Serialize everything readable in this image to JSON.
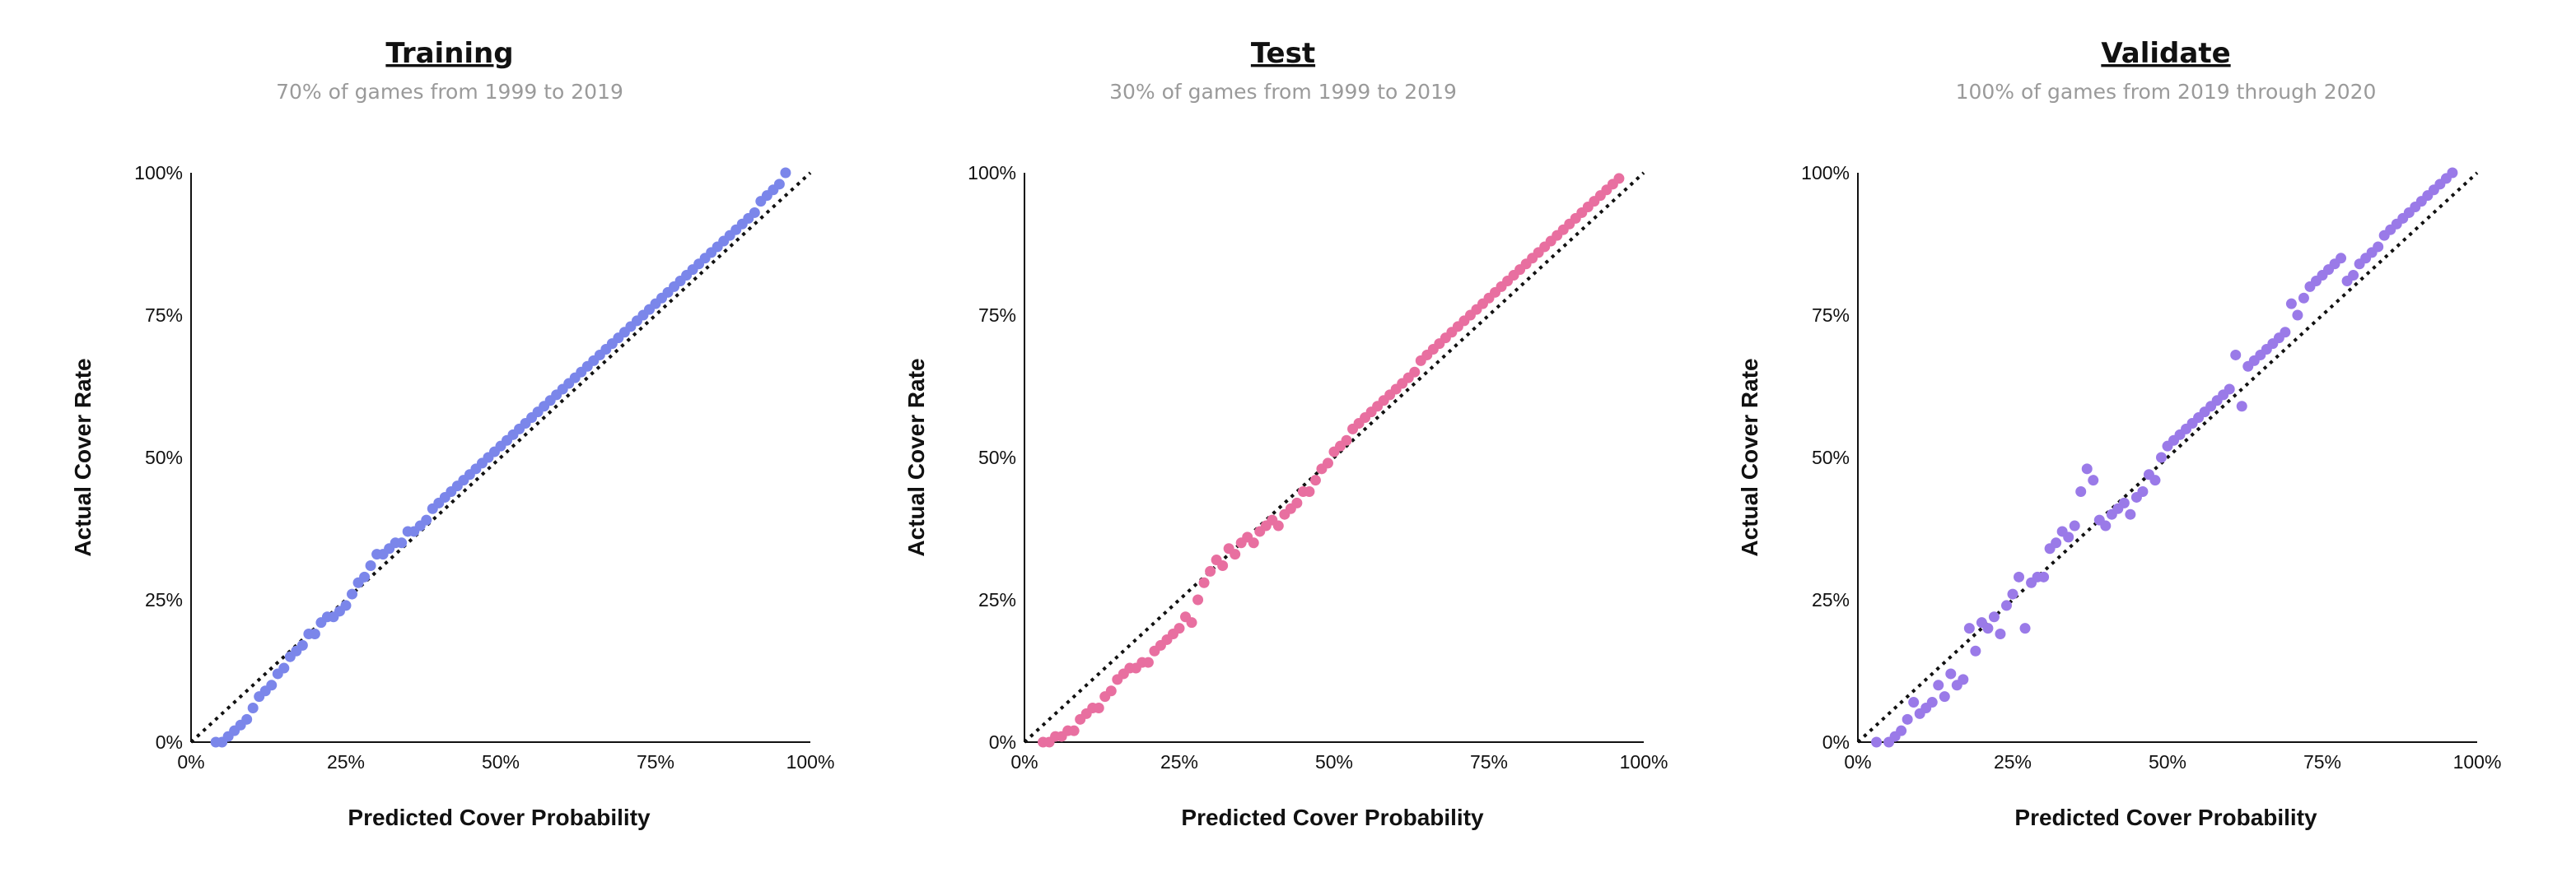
{
  "chart_data": [
    {
      "type": "scatter",
      "title": "Training",
      "subtitle": "70% of games from 1999 to 2019",
      "xlabel": "Predicted Cover Probability",
      "ylabel": "Actual Cover Rate",
      "xlim": [
        0,
        100
      ],
      "ylim": [
        0,
        100
      ],
      "xticks": [
        "0%",
        "25%",
        "50%",
        "75%",
        "100%"
      ],
      "yticks": [
        "0%",
        "25%",
        "50%",
        "75%",
        "100%"
      ],
      "grid": false,
      "reference_line": "y = x",
      "color": "#7b86ea",
      "series": [
        {
          "x": [
            4,
            5,
            6,
            7,
            8,
            9,
            10,
            11,
            12,
            13,
            14,
            15,
            16,
            17,
            18,
            19,
            20,
            21,
            22,
            23,
            24,
            25,
            26,
            27,
            28,
            29,
            30,
            31,
            32,
            33,
            34,
            35,
            36,
            37,
            38,
            39,
            40,
            41,
            42,
            43,
            44,
            45,
            46,
            47,
            48,
            49,
            50,
            51,
            52,
            53,
            54,
            55,
            56,
            57,
            58,
            59,
            60,
            61,
            62,
            63,
            64,
            65,
            66,
            67,
            68,
            69,
            70,
            71,
            72,
            73,
            74,
            75,
            76,
            77,
            78,
            79,
            80,
            81,
            82,
            83,
            84,
            85,
            86,
            87,
            88,
            89,
            90,
            91,
            92,
            93,
            94,
            95,
            96
          ],
          "y": [
            0,
            0,
            1,
            2,
            3,
            4,
            6,
            8,
            9,
            10,
            12,
            13,
            15,
            16,
            17,
            19,
            19,
            21,
            22,
            22,
            23,
            24,
            26,
            28,
            29,
            31,
            33,
            33,
            34,
            35,
            35,
            37,
            37,
            38,
            39,
            41,
            42,
            43,
            44,
            45,
            46,
            47,
            48,
            49,
            50,
            51,
            52,
            53,
            54,
            55,
            56,
            57,
            58,
            59,
            60,
            61,
            62,
            63,
            64,
            65,
            66,
            67,
            68,
            69,
            70,
            71,
            72,
            73,
            74,
            75,
            76,
            77,
            78,
            79,
            80,
            81,
            82,
            83,
            84,
            85,
            86,
            87,
            88,
            89,
            90,
            91,
            92,
            93,
            95,
            96,
            97,
            98,
            100
          ]
        }
      ]
    },
    {
      "type": "scatter",
      "title": "Test",
      "subtitle": "30% of games from 1999 to 2019",
      "xlabel": "Predicted Cover Probability",
      "ylabel": "Actual Cover Rate",
      "xlim": [
        0,
        100
      ],
      "ylim": [
        0,
        100
      ],
      "xticks": [
        "0%",
        "25%",
        "50%",
        "75%",
        "100%"
      ],
      "yticks": [
        "0%",
        "25%",
        "50%",
        "75%",
        "100%"
      ],
      "grid": false,
      "reference_line": "y = x",
      "color": "#e86fa0",
      "series": [
        {
          "x": [
            3,
            4,
            5,
            6,
            7,
            8,
            9,
            10,
            11,
            12,
            13,
            14,
            15,
            16,
            17,
            18,
            19,
            20,
            21,
            22,
            23,
            24,
            25,
            26,
            27,
            28,
            29,
            30,
            31,
            32,
            33,
            34,
            35,
            36,
            37,
            38,
            39,
            40,
            41,
            42,
            43,
            44,
            45,
            46,
            47,
            48,
            49,
            50,
            51,
            52,
            53,
            54,
            55,
            56,
            57,
            58,
            59,
            60,
            61,
            62,
            63,
            64,
            65,
            66,
            67,
            68,
            69,
            70,
            71,
            72,
            73,
            74,
            75,
            76,
            77,
            78,
            79,
            80,
            81,
            82,
            83,
            84,
            85,
            86,
            87,
            88,
            89,
            90,
            91,
            92,
            93,
            94,
            95,
            96
          ],
          "y": [
            0,
            0,
            1,
            1,
            2,
            2,
            4,
            5,
            6,
            6,
            8,
            9,
            11,
            12,
            13,
            13,
            14,
            14,
            16,
            17,
            18,
            19,
            20,
            22,
            21,
            25,
            28,
            30,
            32,
            31,
            34,
            33,
            35,
            36,
            35,
            37,
            38,
            39,
            38,
            40,
            41,
            42,
            44,
            44,
            46,
            48,
            49,
            51,
            52,
            53,
            55,
            56,
            57,
            58,
            59,
            60,
            61,
            62,
            63,
            64,
            65,
            67,
            68,
            69,
            70,
            71,
            72,
            73,
            74,
            75,
            76,
            77,
            78,
            79,
            80,
            81,
            82,
            83,
            84,
            85,
            86,
            87,
            88,
            89,
            90,
            91,
            92,
            93,
            94,
            95,
            96,
            97,
            98,
            99
          ]
        }
      ]
    },
    {
      "type": "scatter",
      "title": "Validate",
      "subtitle": "100% of games from 2019 through 2020",
      "xlabel": "Predicted Cover Probability",
      "ylabel": "Actual Cover Rate",
      "xlim": [
        0,
        100
      ],
      "ylim": [
        0,
        100
      ],
      "xticks": [
        "0%",
        "25%",
        "50%",
        "75%",
        "100%"
      ],
      "yticks": [
        "0%",
        "25%",
        "50%",
        "75%",
        "100%"
      ],
      "grid": false,
      "reference_line": "y = x",
      "color": "#9a7ae8",
      "series": [
        {
          "x": [
            3,
            5,
            6,
            7,
            8,
            9,
            10,
            11,
            12,
            13,
            14,
            15,
            16,
            17,
            18,
            19,
            20,
            21,
            22,
            23,
            24,
            25,
            26,
            27,
            28,
            29,
            30,
            31,
            32,
            33,
            34,
            35,
            36,
            37,
            38,
            39,
            40,
            41,
            42,
            43,
            44,
            45,
            46,
            47,
            48,
            49,
            50,
            51,
            52,
            53,
            54,
            55,
            56,
            57,
            58,
            59,
            60,
            61,
            62,
            63,
            64,
            65,
            66,
            67,
            68,
            69,
            70,
            71,
            72,
            73,
            74,
            75,
            76,
            77,
            78,
            79,
            80,
            81,
            82,
            83,
            84,
            85,
            86,
            87,
            88,
            89,
            90,
            91,
            92,
            93,
            94,
            95,
            96
          ],
          "y": [
            0,
            0,
            1,
            2,
            4,
            7,
            5,
            6,
            7,
            10,
            8,
            12,
            10,
            11,
            20,
            16,
            21,
            20,
            22,
            19,
            24,
            26,
            29,
            20,
            28,
            29,
            29,
            34,
            35,
            37,
            36,
            38,
            44,
            48,
            46,
            39,
            38,
            40,
            41,
            42,
            40,
            43,
            44,
            47,
            46,
            50,
            52,
            53,
            54,
            55,
            56,
            57,
            58,
            59,
            60,
            61,
            62,
            68,
            59,
            66,
            67,
            68,
            69,
            70,
            71,
            72,
            77,
            75,
            78,
            80,
            81,
            82,
            83,
            84,
            85,
            81,
            82,
            84,
            85,
            86,
            87,
            89,
            90,
            91,
            92,
            93,
            94,
            95,
            96,
            97,
            98,
            99,
            100
          ]
        }
      ]
    }
  ]
}
